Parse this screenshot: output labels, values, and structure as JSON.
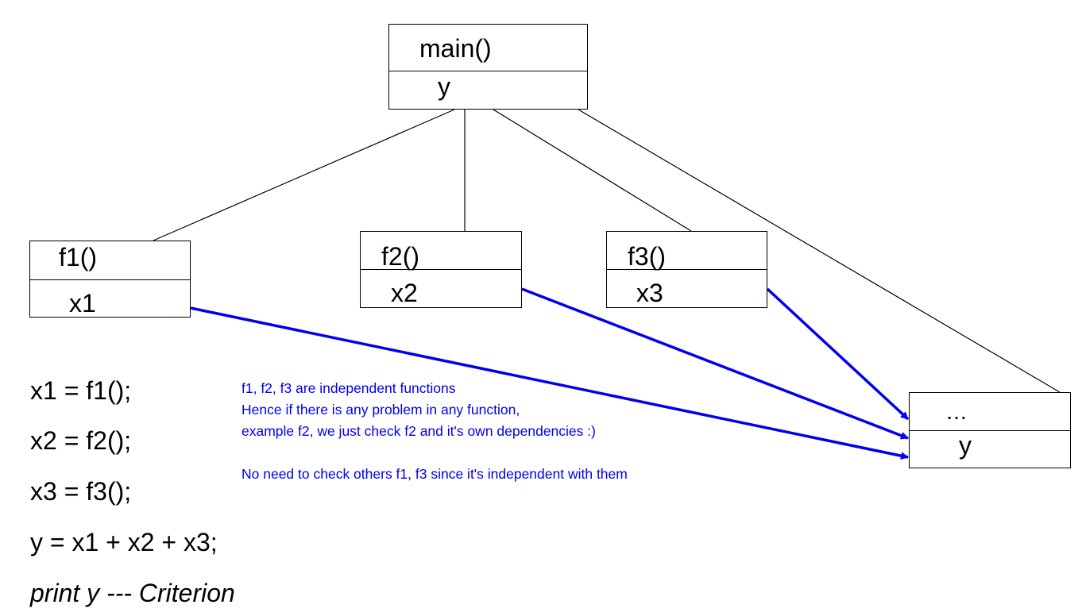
{
  "nodes": {
    "main": {
      "name": "main()",
      "var": "y"
    },
    "f1": {
      "name": "f1()",
      "var": "x1"
    },
    "f2": {
      "name": "f2()",
      "var": "x2"
    },
    "f3": {
      "name": "f3()",
      "var": "x3"
    },
    "target": {
      "name": "…",
      "var": "y"
    }
  },
  "code": [
    "x1 = f1();",
    "x2 = f2();",
    "x3 = f3();",
    "y = x1 + x2 + x3;",
    "print y  --- Criterion"
  ],
  "note": [
    "f1, f2, f3 are independent functions",
    "Hence if there is any problem in any function,",
    "example f2, we just check f2 and it's own dependencies :)",
    "No need to check others f1, f3 since it's independent with them"
  ],
  "colors": {
    "tree_edge": "#000000",
    "data_arrow": "#0000ee",
    "note_text": "#0000ee"
  }
}
